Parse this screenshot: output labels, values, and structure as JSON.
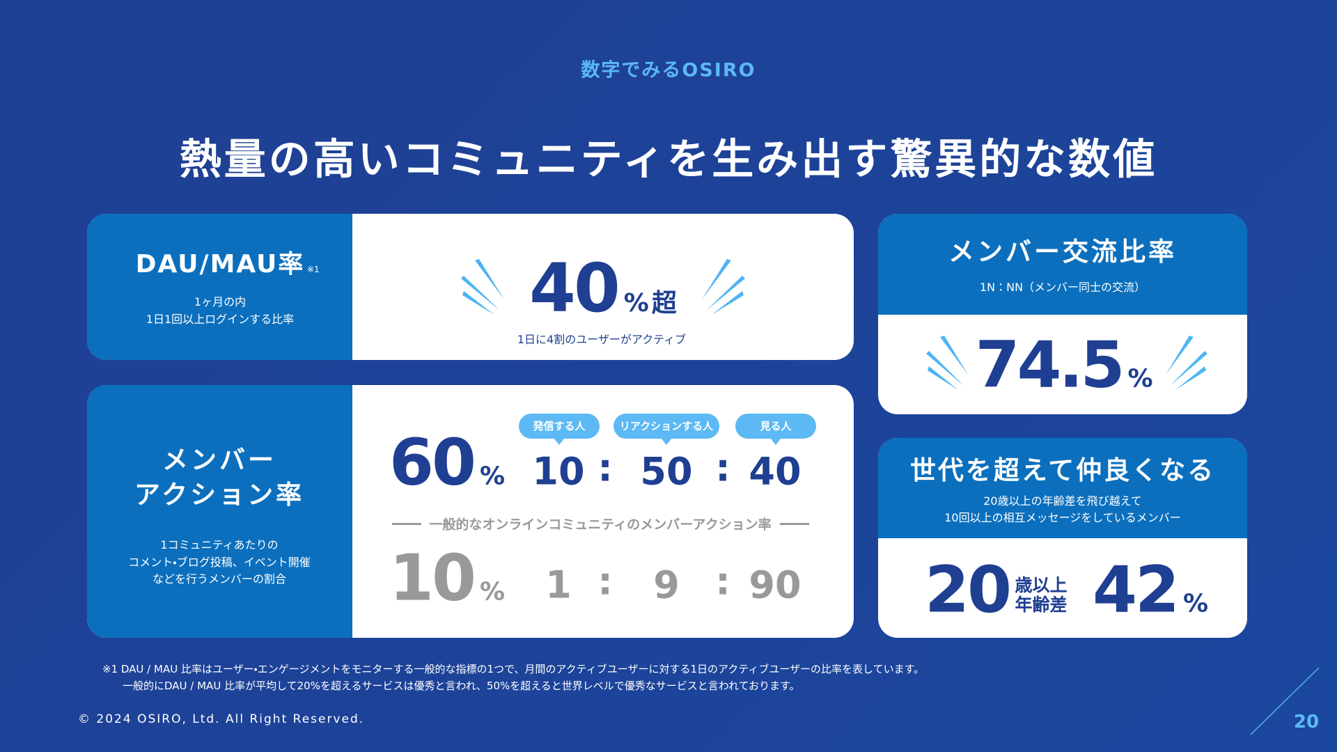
{
  "header": {
    "eyebrow": "数字でみるOSIRO",
    "title": "熱量の高いコミュニティを生み出す驚異的な数値"
  },
  "dau": {
    "label": "DAU/MAU率",
    "note_mark": "※1",
    "desc": [
      "1ヶ月の内",
      "1日1回以上ログインする比率"
    ],
    "value": 40,
    "unit": "%",
    "suffix": "超",
    "caption": "1日に4割のユーザーがアクティブ"
  },
  "action": {
    "label": [
      "メンバー",
      "アクション率"
    ],
    "desc": [
      "1コミュニティあたりの",
      "コメント・ブログ投稿、イベント開催",
      "などを行うメンバーの割合"
    ],
    "roles": [
      "発信する人",
      "リアクションする人",
      "見る人"
    ],
    "ratio_sep": ":",
    "osiro": {
      "rate": 60,
      "unit": "%",
      "ratio": [
        10,
        50,
        40
      ]
    },
    "comparison_label": "一般的なオンラインコミュニティのメンバーアクション率",
    "general": {
      "rate": 10,
      "unit": "%",
      "ratio": [
        1,
        9,
        90
      ]
    }
  },
  "exchange": {
    "title": "メンバー交流比率",
    "subtitle": "1N：NN（メンバー同士の交流）",
    "value": 74.5,
    "unit": "%"
  },
  "generation": {
    "title": "世代を超えて仲良くなる",
    "desc": [
      "20歳以上の年齢差を飛び越えて",
      "10回以上の相互メッセージをしているメンバー"
    ],
    "age": 20,
    "age_label": [
      "歳以上",
      "年齢差"
    ],
    "value": 42,
    "unit": "%"
  },
  "footnote": [
    "※1 DAU / MAU 比率はユーザー・エンゲージメントをモニターする一般的な指標の1つで、月間のアクティブユーザーに対する1日のアクティブユーザーの比率を表しています。",
    "一般的にDAU / MAU 比率が平均して20%を超えるサービスは優秀と言われ、50%を超えると世界レベルで優秀なサービスと言われております。"
  ],
  "footer": {
    "copyright": "© 2024 OSIRO, Ltd. All Right Reserved.",
    "page": 20
  }
}
